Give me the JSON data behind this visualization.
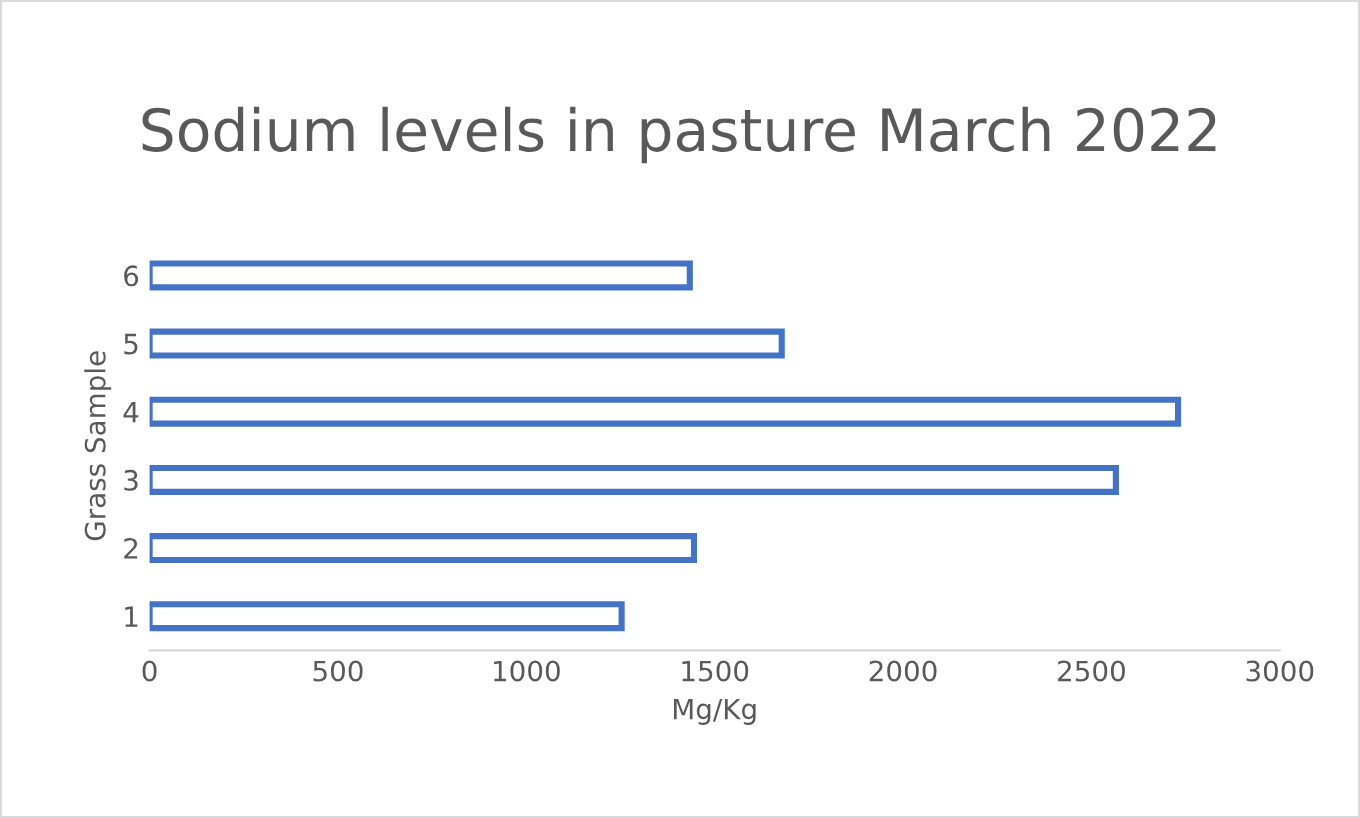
{
  "chart_data": {
    "type": "bar",
    "orientation": "horizontal",
    "title": "Sodium levels in pasture March 2022",
    "xlabel": "Mg/Kg",
    "ylabel": "Grass Sample",
    "categories": [
      "6",
      "5",
      "4",
      "3",
      "2",
      "1"
    ],
    "values": [
      1434,
      1678,
      2730,
      2565,
      1445,
      1253
    ],
    "color": "#4472c4",
    "xlim": [
      0,
      3000
    ],
    "xticks": [
      0,
      500,
      1000,
      1500,
      2000,
      2500,
      3000
    ],
    "grid": false,
    "legend": false
  }
}
